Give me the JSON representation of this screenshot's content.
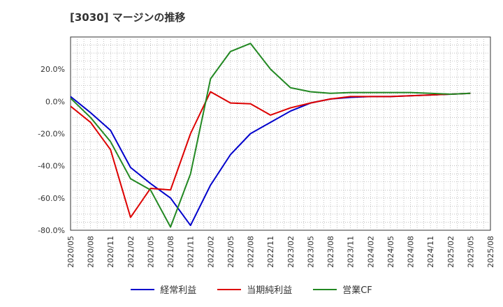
{
  "title": "[3030]  マージンの推移",
  "chart_data": {
    "type": "line",
    "title": "[3030]  マージンの推移",
    "x": [
      "2020/05",
      "2020/08",
      "2020/11",
      "2021/02",
      "2021/05",
      "2021/08",
      "2021/11",
      "2022/02",
      "2022/05",
      "2022/08",
      "2022/11",
      "2023/02",
      "2023/05",
      "2023/08",
      "2023/11",
      "2024/02",
      "2024/05",
      "2024/08",
      "2024/11",
      "2025/02",
      "2025/05"
    ],
    "xticks": [
      "2020/05",
      "2020/08",
      "2020/11",
      "2021/02",
      "2021/05",
      "2021/08",
      "2021/11",
      "2022/02",
      "2022/05",
      "2022/08",
      "2022/11",
      "2023/02",
      "2023/05",
      "2023/08",
      "2023/11",
      "2024/02",
      "2024/05",
      "2024/08",
      "2024/11",
      "2025/02",
      "2025/05",
      "2025/08"
    ],
    "yticks": [
      20,
      0,
      -20,
      -40,
      -60,
      -80
    ],
    "ytick_labels": [
      "20.0%",
      "0.0%",
      "-20.0%",
      "-40.0%",
      "-60.0%",
      "-80.0%"
    ],
    "ylim": [
      -80,
      40
    ],
    "xlim": [
      "2020/05",
      "2025/08"
    ],
    "grid": true,
    "legend_position": "bottom",
    "series": [
      {
        "name": "経常利益",
        "color": "#0000cc",
        "values": [
          3,
          -7,
          -18,
          -41,
          -51,
          -60,
          -77,
          -52,
          -33,
          -20,
          -13,
          -6,
          -1,
          1.5,
          2.5,
          3,
          3,
          3.5,
          4,
          4.5,
          5
        ]
      },
      {
        "name": "当期純利益",
        "color": "#dd0000",
        "values": [
          -3,
          -13,
          -30,
          -72,
          -54,
          -55,
          -20,
          6,
          -1,
          -1.5,
          -8.5,
          -4,
          -1,
          1.5,
          3,
          3,
          3,
          3.5,
          4,
          4.5,
          5
        ]
      },
      {
        "name": "営業CF",
        "color": "#228822",
        "values": [
          2,
          -10,
          -25,
          -48,
          -55,
          -78,
          -45,
          14,
          31,
          36,
          20,
          8.5,
          6,
          5,
          5.5,
          5.5,
          5.5,
          5.5,
          5,
          4.5,
          5
        ]
      }
    ]
  }
}
